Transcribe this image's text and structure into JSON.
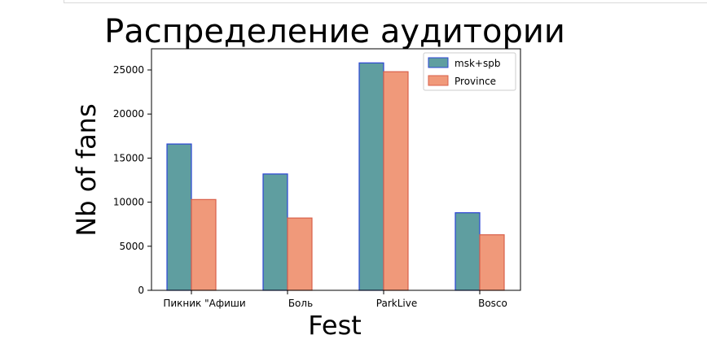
{
  "chart_data": {
    "type": "bar",
    "title": "Распределение аудитории",
    "xlabel": "Fest",
    "ylabel": "Nb of fans",
    "categories": [
      "Пикник \"Афиши",
      "Боль",
      "ParkLive",
      "Bosco"
    ],
    "series": [
      {
        "name": "msk+spb",
        "values": [
          16600,
          13200,
          25800,
          8800
        ],
        "color": "#5f9ea0",
        "edge": "#2b45d4"
      },
      {
        "name": "Province",
        "values": [
          10300,
          8200,
          24800,
          6300
        ],
        "color": "#f0997a",
        "edge": "#d9604a"
      }
    ],
    "ylim": [
      0,
      27400
    ],
    "yticks": [
      0,
      5000,
      10000,
      15000,
      20000,
      25000
    ],
    "grid": false,
    "legend": "top-right"
  }
}
